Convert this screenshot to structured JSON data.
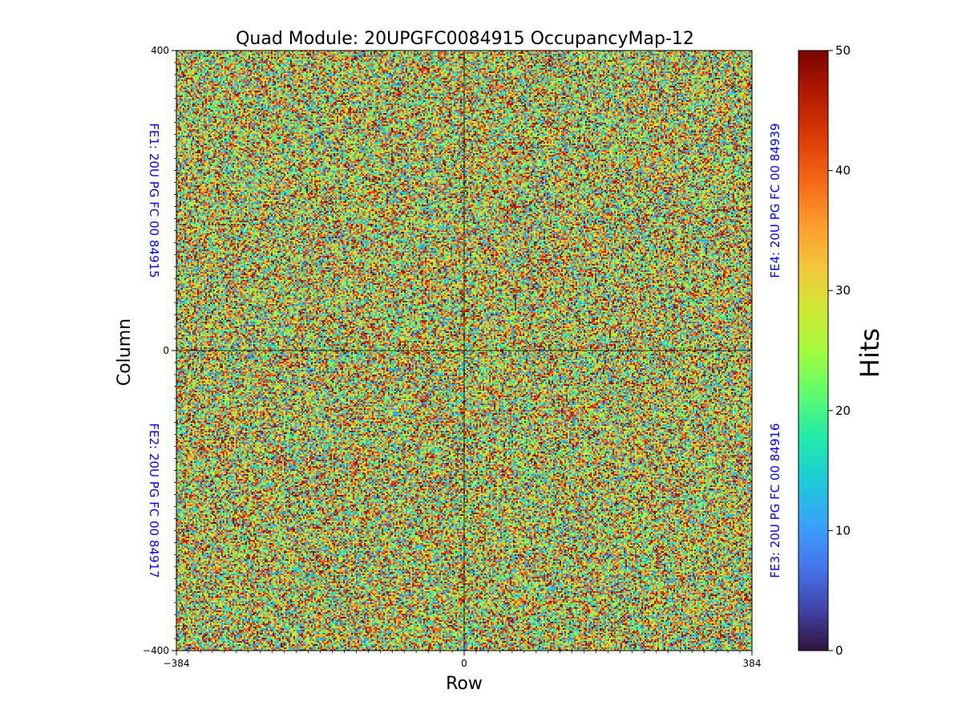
{
  "chart_data": {
    "type": "heatmap",
    "title": "Quad Module: 20UPGFC0084915 OccupancyMap-12",
    "xlabel": "Row",
    "ylabel": "Column",
    "xlim": [
      -384,
      384
    ],
    "ylim": [
      -400,
      400
    ],
    "x_ticks": [
      {
        "value": -384,
        "label": "−384"
      },
      {
        "value": 0,
        "label": "0"
      },
      {
        "value": 384,
        "label": "384"
      }
    ],
    "y_ticks": [
      {
        "value": -400,
        "label": "−400"
      },
      {
        "value": 0,
        "label": "0"
      },
      {
        "value": 400,
        "label": "400"
      }
    ],
    "colorbar": {
      "label": "Hits",
      "min": 0,
      "max": 50,
      "ticks": [
        0,
        10,
        20,
        30,
        40,
        50
      ],
      "colormap": "turbo"
    },
    "value_distribution": "random noise, approximately uniform between 0 and 50 hits per pixel",
    "quadrant_labels": [
      {
        "position": "top-left",
        "text": "FE1: 20U PG FC 00 84915"
      },
      {
        "position": "bottom-left",
        "text": "FE2: 20U PG FC 00 84917"
      },
      {
        "position": "bottom-right",
        "text": "FE3: 20U PG FC 00 84916"
      },
      {
        "position": "top-right",
        "text": "FE4: 20U PG FC 00 84939"
      }
    ]
  }
}
